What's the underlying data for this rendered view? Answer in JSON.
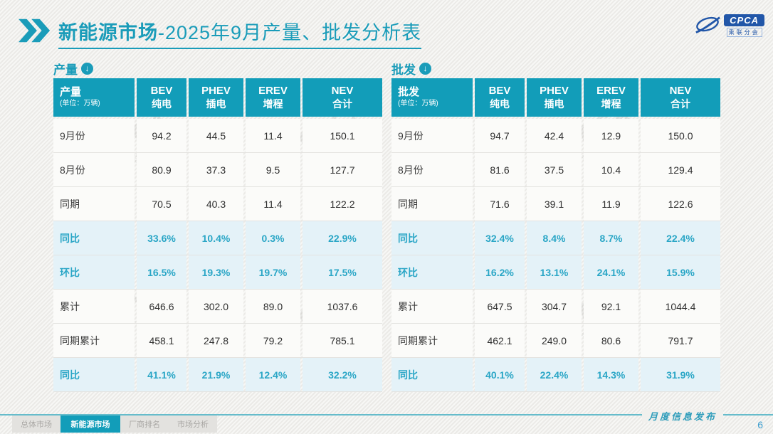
{
  "header": {
    "title_bold": "新能源市场",
    "title_rest": "-2025年9月产量、批发分析表"
  },
  "logo": {
    "name": "CPCA",
    "subtitle": "乘联分会"
  },
  "watermark": {
    "text": "CPCA",
    "subtext": "乘联分会"
  },
  "tables": [
    {
      "id": "production",
      "section_label": "产量",
      "corner_label": "产量",
      "unit": "(单位：万辆)",
      "columns": [
        {
          "en": "BEV",
          "zh": "纯电"
        },
        {
          "en": "PHEV",
          "zh": "插电"
        },
        {
          "en": "EREV",
          "zh": "增程"
        },
        {
          "en": "NEV",
          "zh": "合计"
        }
      ],
      "rows": [
        {
          "label": "9月份",
          "values": [
            "94.2",
            "44.5",
            "11.4",
            "150.1"
          ],
          "type": "data"
        },
        {
          "label": "8月份",
          "values": [
            "80.9",
            "37.3",
            "9.5",
            "127.7"
          ],
          "type": "data"
        },
        {
          "label": "同期",
          "values": [
            "70.5",
            "40.3",
            "11.4",
            "122.2"
          ],
          "type": "data"
        },
        {
          "label": "同比",
          "values": [
            "33.6%",
            "10.4%",
            "0.3%",
            "22.9%"
          ],
          "type": "percent"
        },
        {
          "label": "环比",
          "values": [
            "16.5%",
            "19.3%",
            "19.7%",
            "17.5%"
          ],
          "type": "percent"
        },
        {
          "label": "累计",
          "values": [
            "646.6",
            "302.0",
            "89.0",
            "1037.6"
          ],
          "type": "data"
        },
        {
          "label": "同期累计",
          "values": [
            "458.1",
            "247.8",
            "79.2",
            "785.1"
          ],
          "type": "data"
        },
        {
          "label": "同比",
          "values": [
            "41.1%",
            "21.9%",
            "12.4%",
            "32.2%"
          ],
          "type": "percent"
        }
      ]
    },
    {
      "id": "wholesale",
      "section_label": "批发",
      "corner_label": "批发",
      "unit": "(单位：万辆)",
      "columns": [
        {
          "en": "BEV",
          "zh": "纯电"
        },
        {
          "en": "PHEV",
          "zh": "插电"
        },
        {
          "en": "EREV",
          "zh": "增程"
        },
        {
          "en": "NEV",
          "zh": "合计"
        }
      ],
      "rows": [
        {
          "label": "9月份",
          "values": [
            "94.7",
            "42.4",
            "12.9",
            "150.0"
          ],
          "type": "data"
        },
        {
          "label": "8月份",
          "values": [
            "81.6",
            "37.5",
            "10.4",
            "129.4"
          ],
          "type": "data"
        },
        {
          "label": "同期",
          "values": [
            "71.6",
            "39.1",
            "11.9",
            "122.6"
          ],
          "type": "data"
        },
        {
          "label": "同比",
          "values": [
            "32.4%",
            "8.4%",
            "8.7%",
            "22.4%"
          ],
          "type": "percent"
        },
        {
          "label": "环比",
          "values": [
            "16.2%",
            "13.1%",
            "24.1%",
            "15.9%"
          ],
          "type": "percent"
        },
        {
          "label": "累计",
          "values": [
            "647.5",
            "304.7",
            "92.1",
            "1044.4"
          ],
          "type": "data"
        },
        {
          "label": "同期累计",
          "values": [
            "462.1",
            "249.0",
            "80.6",
            "791.7"
          ],
          "type": "data"
        },
        {
          "label": "同比",
          "values": [
            "40.1%",
            "22.4%",
            "14.3%",
            "31.9%"
          ],
          "type": "percent"
        }
      ]
    }
  ],
  "tabs": [
    {
      "label": "总体市场",
      "active": false
    },
    {
      "label": "新能源市场",
      "active": true
    },
    {
      "label": "厂商排名",
      "active": false
    },
    {
      "label": "市场分析",
      "active": false
    }
  ],
  "footer": {
    "label": "月度信息发布",
    "page_number": "6"
  },
  "colors": {
    "accent_teal": "#129db9",
    "percent_text": "#2aa6c6",
    "percent_row_bg": "#e4f2f8",
    "footer_blue": "#3d9ecf"
  },
  "chart_data": [
    {
      "type": "table",
      "title": "产量 (单位：万辆)",
      "columns": [
        "产量",
        "BEV 纯电",
        "PHEV 插电",
        "EREV 增程",
        "NEV 合计"
      ],
      "rows": [
        [
          "9月份",
          94.2,
          44.5,
          11.4,
          150.1
        ],
        [
          "8月份",
          80.9,
          37.3,
          9.5,
          127.7
        ],
        [
          "同期",
          70.5,
          40.3,
          11.4,
          122.2
        ],
        [
          "同比",
          "33.6%",
          "10.4%",
          "0.3%",
          "22.9%"
        ],
        [
          "环比",
          "16.5%",
          "19.3%",
          "19.7%",
          "17.5%"
        ],
        [
          "累计",
          646.6,
          302.0,
          89.0,
          1037.6
        ],
        [
          "同期累计",
          458.1,
          247.8,
          79.2,
          785.1
        ],
        [
          "同比",
          "41.1%",
          "21.9%",
          "12.4%",
          "32.2%"
        ]
      ]
    },
    {
      "type": "table",
      "title": "批发 (单位：万辆)",
      "columns": [
        "批发",
        "BEV 纯电",
        "PHEV 插电",
        "EREV 增程",
        "NEV 合计"
      ],
      "rows": [
        [
          "9月份",
          94.7,
          42.4,
          12.9,
          150.0
        ],
        [
          "8月份",
          81.6,
          37.5,
          10.4,
          129.4
        ],
        [
          "同期",
          71.6,
          39.1,
          11.9,
          122.6
        ],
        [
          "同比",
          "32.4%",
          "8.4%",
          "8.7%",
          "22.4%"
        ],
        [
          "环比",
          "16.2%",
          "13.1%",
          "24.1%",
          "15.9%"
        ],
        [
          "累计",
          647.5,
          304.7,
          92.1,
          1044.4
        ],
        [
          "同期累计",
          462.1,
          249.0,
          80.6,
          791.7
        ],
        [
          "同比",
          "40.1%",
          "22.4%",
          "14.3%",
          "31.9%"
        ]
      ]
    }
  ]
}
